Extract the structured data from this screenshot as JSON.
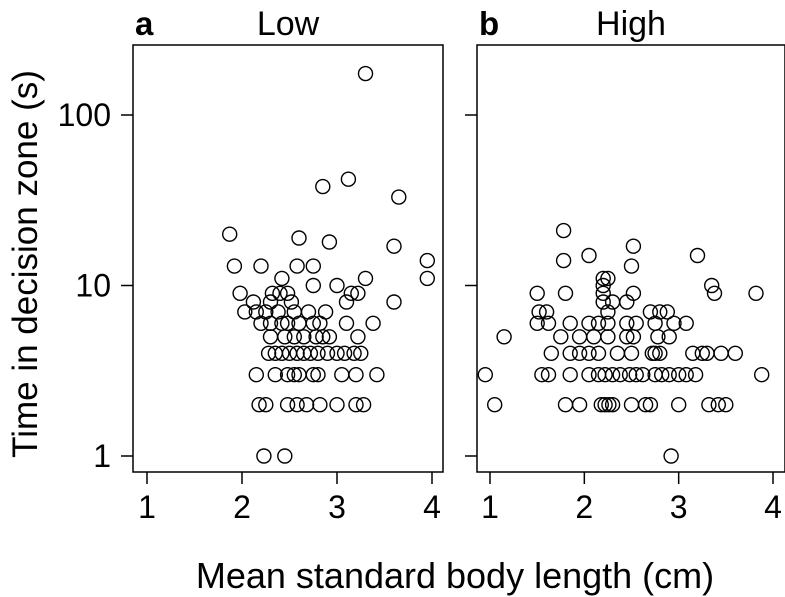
{
  "figure": {
    "xlabel": "Mean standard body length (cm)",
    "ylabel": "Time in decision zone (s)"
  },
  "chart_data": [
    {
      "type": "scatter",
      "panel_letter": "a",
      "title": "Low",
      "xlabel": "Mean standard body length (cm)",
      "ylabel": "Time in decision zone (s)",
      "xlim": [
        0.9,
        4.1
      ],
      "ylim": [
        0.8,
        250
      ],
      "yscale": "log",
      "xticks": [
        1,
        2,
        3,
        4
      ],
      "yticks": [
        1,
        10,
        100
      ],
      "marker": "open-circle",
      "points": [
        [
          2.23,
          1
        ],
        [
          2.45,
          1
        ],
        [
          2.18,
          2
        ],
        [
          2.25,
          2
        ],
        [
          2.48,
          2
        ],
        [
          2.58,
          2
        ],
        [
          2.68,
          2
        ],
        [
          2.82,
          2
        ],
        [
          3.0,
          2
        ],
        [
          3.2,
          2
        ],
        [
          3.28,
          2
        ],
        [
          2.15,
          3
        ],
        [
          2.35,
          3
        ],
        [
          2.48,
          3
        ],
        [
          2.55,
          3
        ],
        [
          2.6,
          3
        ],
        [
          2.75,
          3
        ],
        [
          2.8,
          3
        ],
        [
          3.05,
          3
        ],
        [
          3.2,
          3
        ],
        [
          3.42,
          3
        ],
        [
          2.28,
          4
        ],
        [
          2.35,
          4
        ],
        [
          2.42,
          4
        ],
        [
          2.5,
          4
        ],
        [
          2.58,
          4
        ],
        [
          2.65,
          4
        ],
        [
          2.72,
          4
        ],
        [
          2.8,
          4
        ],
        [
          2.9,
          4
        ],
        [
          3.0,
          4
        ],
        [
          3.08,
          4
        ],
        [
          3.18,
          4
        ],
        [
          3.25,
          4
        ],
        [
          2.3,
          5
        ],
        [
          2.45,
          5
        ],
        [
          2.55,
          5
        ],
        [
          2.65,
          5
        ],
        [
          2.78,
          5
        ],
        [
          2.85,
          5
        ],
        [
          2.92,
          5
        ],
        [
          3.22,
          5
        ],
        [
          2.2,
          6
        ],
        [
          2.3,
          6
        ],
        [
          2.42,
          6
        ],
        [
          2.48,
          6
        ],
        [
          2.6,
          6
        ],
        [
          2.75,
          6
        ],
        [
          2.82,
          6
        ],
        [
          3.1,
          6
        ],
        [
          3.38,
          6
        ],
        [
          2.03,
          7
        ],
        [
          2.15,
          7
        ],
        [
          2.25,
          7
        ],
        [
          2.38,
          7
        ],
        [
          2.55,
          7
        ],
        [
          2.7,
          7
        ],
        [
          2.88,
          7
        ],
        [
          2.12,
          8
        ],
        [
          2.3,
          8
        ],
        [
          2.52,
          8
        ],
        [
          3.1,
          8
        ],
        [
          3.6,
          8
        ],
        [
          1.98,
          9
        ],
        [
          2.32,
          9
        ],
        [
          2.4,
          9
        ],
        [
          2.48,
          9
        ],
        [
          3.15,
          9
        ],
        [
          3.22,
          9
        ],
        [
          2.75,
          10
        ],
        [
          3.0,
          10
        ],
        [
          2.42,
          11
        ],
        [
          3.3,
          11
        ],
        [
          3.95,
          11
        ],
        [
          2.2,
          13
        ],
        [
          2.58,
          13
        ],
        [
          2.75,
          13
        ],
        [
          1.92,
          13
        ],
        [
          3.95,
          14
        ],
        [
          3.6,
          17
        ],
        [
          2.92,
          18
        ],
        [
          2.6,
          19
        ],
        [
          1.87,
          20
        ],
        [
          3.65,
          33
        ],
        [
          2.85,
          38
        ],
        [
          3.12,
          42
        ],
        [
          3.3,
          175
        ]
      ]
    },
    {
      "type": "scatter",
      "panel_letter": "b",
      "title": "High",
      "xlabel": "Mean standard body length (cm)",
      "ylabel": "Time in decision zone (s)",
      "xlim": [
        0.9,
        4.1
      ],
      "ylim": [
        0.8,
        250
      ],
      "yscale": "log",
      "xticks": [
        1,
        2,
        3,
        4
      ],
      "yticks": [
        1,
        10,
        100
      ],
      "marker": "open-circle",
      "points": [
        [
          2.92,
          1
        ],
        [
          1.05,
          2
        ],
        [
          1.8,
          2
        ],
        [
          1.95,
          2
        ],
        [
          2.18,
          2
        ],
        [
          2.22,
          2
        ],
        [
          2.26,
          2
        ],
        [
          2.3,
          2
        ],
        [
          2.5,
          2
        ],
        [
          2.65,
          2
        ],
        [
          2.7,
          2
        ],
        [
          3.0,
          2
        ],
        [
          3.32,
          2
        ],
        [
          3.42,
          2
        ],
        [
          3.5,
          2
        ],
        [
          0.95,
          3
        ],
        [
          1.55,
          3
        ],
        [
          1.62,
          3
        ],
        [
          1.85,
          3
        ],
        [
          2.05,
          3
        ],
        [
          2.15,
          3
        ],
        [
          2.22,
          3
        ],
        [
          2.3,
          3
        ],
        [
          2.38,
          3
        ],
        [
          2.48,
          3
        ],
        [
          2.55,
          3
        ],
        [
          2.62,
          3
        ],
        [
          2.75,
          3
        ],
        [
          2.82,
          3
        ],
        [
          2.9,
          3
        ],
        [
          3.0,
          3
        ],
        [
          3.08,
          3
        ],
        [
          3.18,
          3
        ],
        [
          3.88,
          3
        ],
        [
          1.65,
          4
        ],
        [
          1.85,
          4
        ],
        [
          1.95,
          4
        ],
        [
          2.05,
          4
        ],
        [
          2.15,
          4
        ],
        [
          2.35,
          4
        ],
        [
          2.5,
          4
        ],
        [
          2.72,
          4
        ],
        [
          2.75,
          4
        ],
        [
          2.8,
          4
        ],
        [
          3.15,
          4
        ],
        [
          3.25,
          4
        ],
        [
          3.3,
          4
        ],
        [
          3.45,
          4
        ],
        [
          3.6,
          4
        ],
        [
          1.15,
          5
        ],
        [
          1.75,
          5
        ],
        [
          1.95,
          5
        ],
        [
          2.1,
          5
        ],
        [
          2.25,
          5
        ],
        [
          2.45,
          5
        ],
        [
          2.52,
          5
        ],
        [
          2.78,
          5
        ],
        [
          2.9,
          5
        ],
        [
          1.5,
          6
        ],
        [
          1.62,
          6
        ],
        [
          1.85,
          6
        ],
        [
          2.05,
          6
        ],
        [
          2.15,
          6
        ],
        [
          2.25,
          6
        ],
        [
          2.45,
          6
        ],
        [
          2.55,
          6
        ],
        [
          2.75,
          6
        ],
        [
          2.95,
          6
        ],
        [
          3.08,
          6
        ],
        [
          1.52,
          7
        ],
        [
          1.6,
          7
        ],
        [
          2.25,
          7
        ],
        [
          2.7,
          7
        ],
        [
          2.8,
          7
        ],
        [
          2.88,
          7
        ],
        [
          2.2,
          8
        ],
        [
          2.3,
          8
        ],
        [
          2.45,
          8
        ],
        [
          1.5,
          9
        ],
        [
          1.8,
          9
        ],
        [
          2.2,
          9
        ],
        [
          2.52,
          9
        ],
        [
          3.38,
          9
        ],
        [
          3.82,
          9
        ],
        [
          2.2,
          10
        ],
        [
          3.35,
          10
        ],
        [
          2.2,
          11
        ],
        [
          2.25,
          11
        ],
        [
          2.5,
          13
        ],
        [
          1.78,
          14
        ],
        [
          2.05,
          15
        ],
        [
          3.2,
          15
        ],
        [
          2.52,
          17
        ],
        [
          1.78,
          21
        ]
      ]
    }
  ]
}
